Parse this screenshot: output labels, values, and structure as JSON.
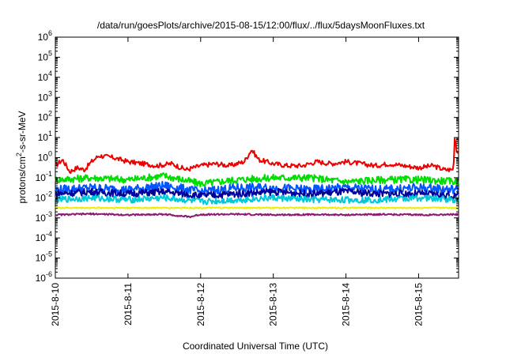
{
  "chart_data": {
    "type": "line",
    "title": "/data/run/goesPlots/archive/2015-08-15/12:00/flux/../flux/5daysMoonFluxes.txt",
    "xlabel": "Coordinated Universal Time (UTC)",
    "ylabel": {
      "prefix": "protons/cm",
      "superscript": "2",
      "suffix": "-s-sr-MeV"
    },
    "y_scale": "log",
    "ylim_exponents": [
      -6,
      6
    ],
    "y_ticks": [
      {
        "base": "10",
        "exp": "-6"
      },
      {
        "base": "10",
        "exp": "-5"
      },
      {
        "base": "10",
        "exp": "-4"
      },
      {
        "base": "10",
        "exp": "-3"
      },
      {
        "base": "10",
        "exp": "-2"
      },
      {
        "base": "10",
        "exp": "-1"
      },
      {
        "base": "10",
        "exp": "0"
      },
      {
        "base": "10",
        "exp": "1"
      },
      {
        "base": "10",
        "exp": "2"
      },
      {
        "base": "10",
        "exp": "3"
      },
      {
        "base": "10",
        "exp": "4"
      },
      {
        "base": "10",
        "exp": "5"
      },
      {
        "base": "10",
        "exp": "6"
      }
    ],
    "x_unit": "days",
    "xlim_days": [
      0,
      5.55
    ],
    "x_ticks": [
      "2015-8-10",
      "2015-8-11",
      "2015-8-12",
      "2015-8-13",
      "2015-8-14",
      "2015-8-15"
    ],
    "grid": false,
    "legend": "none",
    "series": [
      {
        "color": "#ee0000",
        "x": [
          0,
          0.1,
          0.2,
          0.3,
          0.4,
          0.5,
          0.6,
          0.8,
          1.0,
          1.2,
          1.4,
          1.6,
          1.8,
          2.0,
          2.2,
          2.4,
          2.6,
          2.7,
          2.8,
          3.0,
          3.2,
          3.4,
          3.6,
          3.8,
          4.0,
          4.2,
          4.4,
          4.6,
          4.8,
          5.0,
          5.2,
          5.35,
          5.48,
          5.5,
          5.52,
          5.55
        ],
        "log10": [
          -0.4,
          -0.1,
          -0.7,
          -0.5,
          -0.6,
          -0.2,
          0.1,
          0.0,
          -0.2,
          -0.3,
          -0.4,
          -0.3,
          -0.6,
          -0.4,
          -0.3,
          -0.4,
          -0.2,
          0.4,
          -0.1,
          -0.3,
          -0.4,
          -0.4,
          -0.2,
          -0.3,
          -0.2,
          -0.3,
          -0.4,
          -0.3,
          -0.4,
          -0.5,
          -0.4,
          -0.6,
          -0.6,
          1.2,
          0.3,
          0.2
        ]
      },
      {
        "color": "#00dd00",
        "x": [
          0,
          0.5,
          1.0,
          1.5,
          2.0,
          2.5,
          3.0,
          3.5,
          4.0,
          4.5,
          5.0,
          5.55
        ],
        "log10": [
          -1.1,
          -1.0,
          -1.1,
          -0.9,
          -1.3,
          -1.1,
          -1.0,
          -1.0,
          -1.2,
          -1.1,
          -1.1,
          -1.2
        ]
      },
      {
        "color": "#0055ff",
        "x": [
          0,
          0.5,
          1.0,
          1.5,
          2.0,
          2.5,
          3.0,
          3.5,
          4.0,
          4.5,
          5.0,
          5.55
        ],
        "log10": [
          -1.6,
          -1.5,
          -1.6,
          -1.4,
          -1.7,
          -1.5,
          -1.5,
          -1.6,
          -1.5,
          -1.6,
          -1.5,
          -1.6
        ]
      },
      {
        "color": "#00009a",
        "x": [
          0,
          0.5,
          1.0,
          1.5,
          2.0,
          2.5,
          3.0,
          3.5,
          4.0,
          4.5,
          5.0,
          5.55
        ],
        "log10": [
          -1.8,
          -1.7,
          -1.8,
          -1.7,
          -1.9,
          -1.8,
          -1.7,
          -1.8,
          -1.7,
          -1.8,
          -1.8,
          -1.9
        ]
      },
      {
        "color": "#00c8d8",
        "x": [
          0,
          0.5,
          1.0,
          1.5,
          2.0,
          2.5,
          3.0,
          3.5,
          4.0,
          4.5,
          5.0,
          5.55
        ],
        "log10": [
          -2.1,
          -2.0,
          -2.1,
          -2.0,
          -2.2,
          -2.1,
          -2.0,
          -2.1,
          -2.1,
          -2.1,
          -2.0,
          -2.1
        ]
      },
      {
        "color": "#eeee00",
        "x": [
          0,
          0.5,
          1.0,
          1.5,
          2.0,
          2.5,
          3.0,
          3.5,
          4.0,
          4.5,
          5.0,
          5.55
        ],
        "log10": [
          -2.5,
          -2.5,
          -2.5,
          -2.5,
          -2.5,
          -2.5,
          -2.5,
          -2.5,
          -2.5,
          -2.5,
          -2.5,
          -2.5
        ]
      },
      {
        "color": "#8b1a6e",
        "x": [
          0,
          0.5,
          1.0,
          1.5,
          1.85,
          2.0,
          2.5,
          3.0,
          3.5,
          4.0,
          4.5,
          5.0,
          5.55
        ],
        "log10": [
          -2.85,
          -2.8,
          -2.85,
          -2.82,
          -2.95,
          -2.83,
          -2.82,
          -2.85,
          -2.83,
          -2.85,
          -2.82,
          -2.85,
          -2.83
        ]
      }
    ]
  }
}
